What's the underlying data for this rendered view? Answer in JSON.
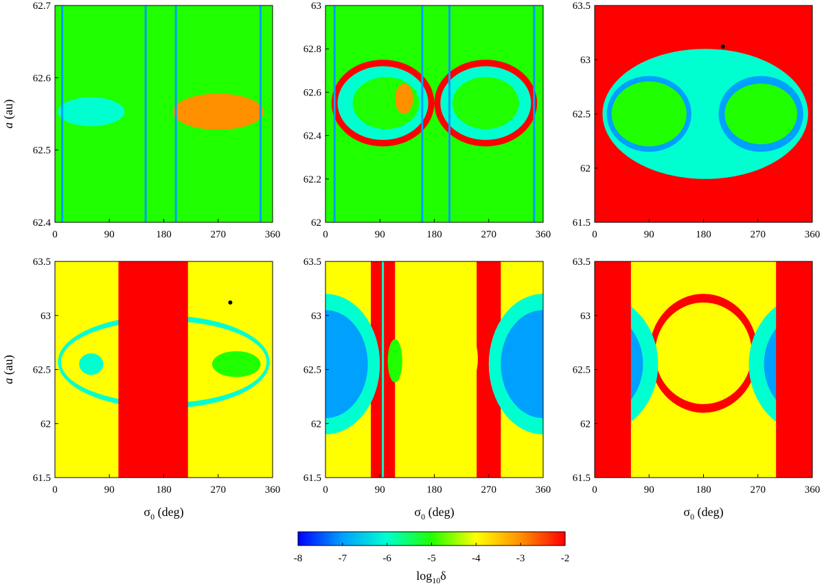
{
  "figure": {
    "colorbar": {
      "label_main": "log",
      "label_sub": "10",
      "label_sym": "δ",
      "range": [
        -8,
        -2
      ],
      "ticks": [
        "-8",
        "-7",
        "-6",
        "-5",
        "-4",
        "-3",
        "-2"
      ],
      "colormap": [
        "#0000ff",
        "#00a0ff",
        "#00ffd0",
        "#20ff00",
        "#ffff00",
        "#ff9000",
        "#ff0000"
      ]
    }
  },
  "chart_data": [
    {
      "type": "heatmap",
      "panel": "top-left",
      "xlabel": "",
      "ylabel_main": "a",
      "ylabel_unit": "(au)",
      "xlim": [
        0,
        360
      ],
      "ylim": [
        62.4,
        62.7
      ],
      "xticks": [
        "0",
        "90",
        "180",
        "270",
        "360"
      ],
      "yticks": [
        "62.4",
        "62.5",
        "62.6",
        "62.7"
      ],
      "ytick_values": [
        62.4,
        62.5,
        62.6,
        62.7
      ],
      "background_log10_delta": -5,
      "features": [
        {
          "kind": "island",
          "cx": 60,
          "cy": 62.553,
          "rx": 55,
          "ry": 0.02,
          "value": -6.5
        },
        {
          "kind": "island",
          "cx": 270,
          "cy": 62.553,
          "rx": 75,
          "ry": 0.025,
          "value": -3.0
        },
        {
          "kind": "stripe",
          "x": 12,
          "value": -7.5
        },
        {
          "kind": "stripe",
          "x": 150,
          "value": -7.0
        },
        {
          "kind": "stripe",
          "x": 200,
          "value": -7.0
        },
        {
          "kind": "stripe",
          "x": 340,
          "value": -7.0
        }
      ]
    },
    {
      "type": "heatmap",
      "panel": "top-middle",
      "xlabel": "",
      "ylabel_main": "",
      "ylabel_unit": "",
      "xlim": [
        0,
        360
      ],
      "ylim": [
        62.0,
        63.0
      ],
      "xticks": [
        "0",
        "90",
        "180",
        "270",
        "360"
      ],
      "yticks": [
        "62",
        "62.2",
        "62.4",
        "62.6",
        "62.8",
        "63"
      ],
      "ytick_values": [
        62.0,
        62.2,
        62.4,
        62.6,
        62.8,
        63.0
      ],
      "background_log10_delta": -5,
      "features": [
        {
          "kind": "island",
          "cx": 95,
          "cy": 62.55,
          "rx": 85,
          "ry": 0.2,
          "value": -2.0
        },
        {
          "kind": "island",
          "cx": 265,
          "cy": 62.55,
          "rx": 85,
          "ry": 0.2,
          "value": -2.0
        },
        {
          "kind": "island",
          "cx": 95,
          "cy": 62.55,
          "rx": 75,
          "ry": 0.17,
          "value": -6.0
        },
        {
          "kind": "island",
          "cx": 265,
          "cy": 62.55,
          "rx": 75,
          "ry": 0.17,
          "value": -6.0
        },
        {
          "kind": "island",
          "cx": 100,
          "cy": 62.55,
          "rx": 55,
          "ry": 0.12,
          "value": -5.0
        },
        {
          "kind": "island",
          "cx": 265,
          "cy": 62.55,
          "rx": 55,
          "ry": 0.12,
          "value": -5.0
        },
        {
          "kind": "island",
          "cx": 130,
          "cy": 62.57,
          "rx": 15,
          "ry": 0.07,
          "value": -3.5
        },
        {
          "kind": "stripe",
          "x": 15,
          "value": -7.0
        },
        {
          "kind": "stripe",
          "x": 160,
          "value": -7.0
        },
        {
          "kind": "stripe",
          "x": 205,
          "value": -7.0
        },
        {
          "kind": "stripe",
          "x": 345,
          "value": -7.0
        }
      ]
    },
    {
      "type": "heatmap",
      "panel": "top-right",
      "xlabel": "",
      "ylabel_main": "",
      "ylabel_unit": "",
      "xlim": [
        0,
        360
      ],
      "ylim": [
        61.5,
        63.5
      ],
      "xticks": [
        "0",
        "90",
        "180",
        "270",
        "360"
      ],
      "yticks": [
        "61.5",
        "62",
        "62.5",
        "63",
        "63.5"
      ],
      "ytick_values": [
        61.5,
        62.0,
        62.5,
        63.0,
        63.5
      ],
      "background_log10_delta": -2,
      "features": [
        {
          "kind": "island",
          "cx": 183,
          "cy": 62.5,
          "rx": 170,
          "ry": 0.6,
          "value": -6.2
        },
        {
          "kind": "island",
          "cx": 90,
          "cy": 62.5,
          "rx": 70,
          "ry": 0.35,
          "value": -7.5
        },
        {
          "kind": "island",
          "cx": 275,
          "cy": 62.5,
          "rx": 70,
          "ry": 0.35,
          "value": -7.5
        },
        {
          "kind": "island",
          "cx": 90,
          "cy": 62.5,
          "rx": 62,
          "ry": 0.3,
          "value": -5.0
        },
        {
          "kind": "island",
          "cx": 275,
          "cy": 62.5,
          "rx": 60,
          "ry": 0.28,
          "value": -5.0
        },
        {
          "kind": "point",
          "x": 212,
          "y": 63.12,
          "value": -8
        }
      ]
    },
    {
      "type": "heatmap",
      "panel": "bottom-left",
      "xlabel_main": "σ",
      "xlabel_sub": "0",
      "xlabel_unit": "(deg)",
      "ylabel_main": "a",
      "ylabel_unit": "(au)",
      "xlim": [
        0,
        360
      ],
      "ylim": [
        61.5,
        63.5
      ],
      "xticks": [
        "0",
        "90",
        "180",
        "270",
        "360"
      ],
      "yticks": [
        "61.5",
        "62",
        "62.5",
        "63",
        "63.5"
      ],
      "ytick_values": [
        61.5,
        62.0,
        62.5,
        63.0,
        63.5
      ],
      "background_log10_delta": -4.5,
      "features": [
        {
          "kind": "island",
          "cx": 180,
          "cy": 62.57,
          "rx": 175,
          "ry": 0.43,
          "value": -6.5
        },
        {
          "kind": "island",
          "cx": 180,
          "cy": 62.57,
          "rx": 170,
          "ry": 0.38,
          "value": -4.5
        },
        {
          "kind": "island",
          "cx": 60,
          "cy": 62.55,
          "rx": 20,
          "ry": 0.1,
          "value": -6.0
        },
        {
          "kind": "island",
          "cx": 300,
          "cy": 62.55,
          "rx": 40,
          "ry": 0.12,
          "value": -5.0
        },
        {
          "kind": "band",
          "x0": 105,
          "x1": 220,
          "value": -2.0
        },
        {
          "kind": "point",
          "x": 290,
          "y": 63.12,
          "value": -8
        }
      ]
    },
    {
      "type": "heatmap",
      "panel": "bottom-middle",
      "xlabel_main": "σ",
      "xlabel_sub": "0",
      "xlabel_unit": "(deg)",
      "ylabel_main": "",
      "ylabel_unit": "",
      "xlim": [
        0,
        360
      ],
      "ylim": [
        61.5,
        63.5
      ],
      "xticks": [
        "0",
        "90",
        "180",
        "270",
        "360"
      ],
      "yticks": [
        "61.5",
        "62",
        "62.5",
        "63",
        "63.5"
      ],
      "ytick_values": [
        61.5,
        62.0,
        62.5,
        63.0,
        63.5
      ],
      "background_log10_delta": -4.5,
      "features": [
        {
          "kind": "band",
          "x0": 75,
          "x1": 115,
          "value": -2.0
        },
        {
          "kind": "band",
          "x0": 250,
          "x1": 290,
          "value": -2.0
        },
        {
          "kind": "island",
          "cx": 0,
          "cy": 62.55,
          "rx": 90,
          "ry": 0.65,
          "value": -6.5
        },
        {
          "kind": "island",
          "cx": 360,
          "cy": 62.55,
          "rx": 90,
          "ry": 0.65,
          "value": -6.5
        },
        {
          "kind": "island",
          "cx": 0,
          "cy": 62.55,
          "rx": 70,
          "ry": 0.5,
          "value": -7.5
        },
        {
          "kind": "island",
          "cx": 360,
          "cy": 62.55,
          "rx": 70,
          "ry": 0.5,
          "value": -7.5
        },
        {
          "kind": "island",
          "cx": 115,
          "cy": 62.58,
          "rx": 12,
          "ry": 0.2,
          "value": -5.0
        },
        {
          "kind": "island",
          "cx": 240,
          "cy": 62.6,
          "rx": 12,
          "ry": 0.2,
          "value": -4.0
        },
        {
          "kind": "stripe",
          "x": 95,
          "value": -6.0
        }
      ]
    },
    {
      "type": "heatmap",
      "panel": "bottom-right",
      "xlabel_main": "σ",
      "xlabel_sub": "0",
      "xlabel_unit": "(deg)",
      "ylabel_main": "",
      "ylabel_unit": "",
      "xlim": [
        0,
        360
      ],
      "ylim": [
        61.5,
        63.5
      ],
      "xticks": [
        "0",
        "90",
        "180",
        "270",
        "360"
      ],
      "yticks": [
        "61.5",
        "62",
        "62.5",
        "63",
        "63.5"
      ],
      "ytick_values": [
        61.5,
        62.0,
        62.5,
        63.0,
        63.5
      ],
      "background_log10_delta": -4.5,
      "features": [
        {
          "kind": "island",
          "cx": 180,
          "cy": 62.65,
          "rx": 90,
          "ry": 0.55,
          "value": -2.0
        },
        {
          "kind": "island",
          "cx": 180,
          "cy": 62.65,
          "rx": 80,
          "ry": 0.47,
          "value": -4.5
        },
        {
          "kind": "island",
          "cx": 0,
          "cy": 62.55,
          "rx": 105,
          "ry": 0.65,
          "value": -6.0
        },
        {
          "kind": "island",
          "cx": 360,
          "cy": 62.55,
          "rx": 105,
          "ry": 0.65,
          "value": -6.0
        },
        {
          "kind": "island",
          "cx": 0,
          "cy": 62.55,
          "rx": 80,
          "ry": 0.5,
          "value": -7.5
        },
        {
          "kind": "island",
          "cx": 360,
          "cy": 62.55,
          "rx": 80,
          "ry": 0.5,
          "value": -7.5
        },
        {
          "kind": "band",
          "x0": 0,
          "x1": 60,
          "value": -2.0
        },
        {
          "kind": "band",
          "x0": 300,
          "x1": 360,
          "value": -2.0
        }
      ]
    }
  ]
}
